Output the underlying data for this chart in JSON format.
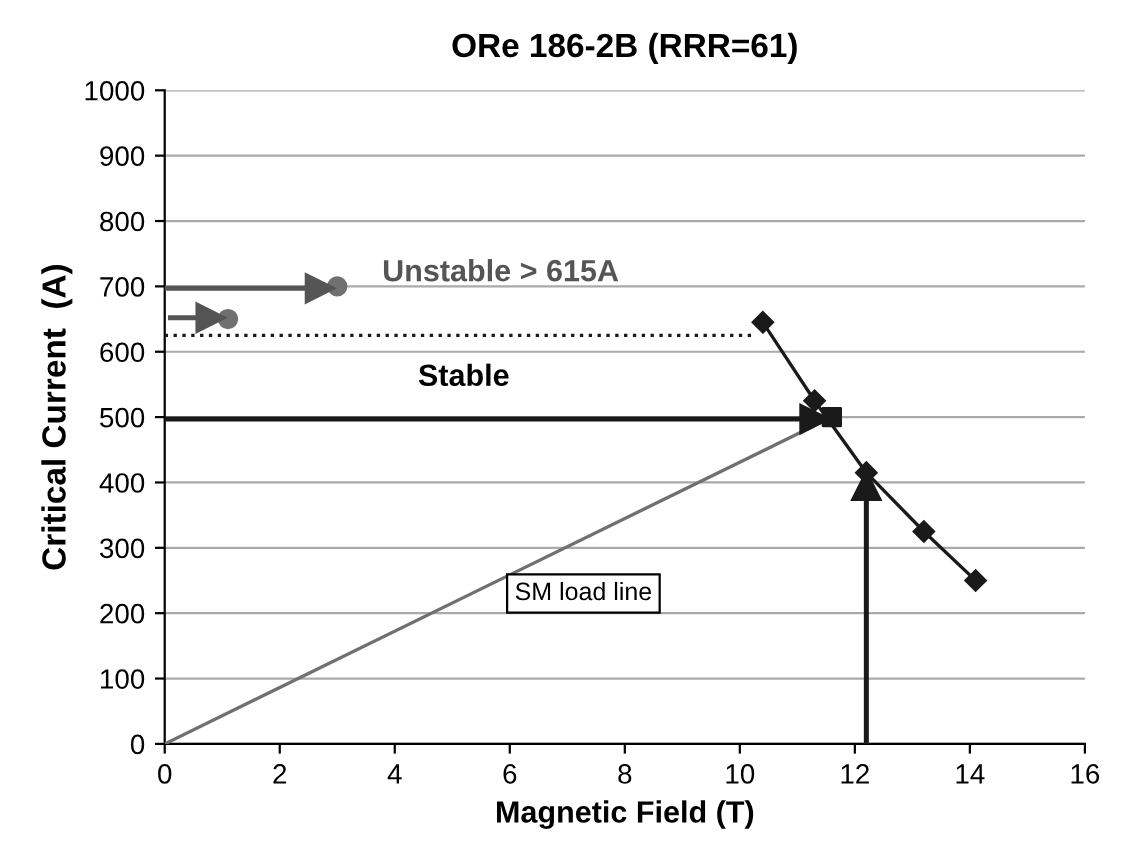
{
  "chart_data": {
    "type": "line",
    "title": "ORe 186-2B (RRR=61)",
    "xlabel": "Magnetic Field (T)",
    "ylabel": "Critical Current  (A)",
    "xlim": [
      0,
      16
    ],
    "xticks": [
      0,
      2,
      4,
      6,
      8,
      10,
      12,
      14,
      16
    ],
    "ylim": [
      0,
      1000
    ],
    "yticks": [
      0,
      100,
      200,
      300,
      400,
      500,
      600,
      700,
      800,
      900,
      1000
    ],
    "grid": "y",
    "legend": false,
    "series": [
      {
        "color": "#1a1a1a",
        "marker": "diamond",
        "x": [
          10.4,
          11.3,
          12.2,
          13.2,
          14.1
        ],
        "values": [
          645,
          525,
          415,
          325,
          250
        ]
      },
      {
        "color": "#707070",
        "marker": "none",
        "x": [
          0,
          11.6
        ],
        "values": [
          0,
          500
        ]
      },
      {
        "type": "scatter",
        "color": "#1a1a1a",
        "marker": "square",
        "x": [
          11.6
        ],
        "values": [
          500
        ]
      },
      {
        "type": "scatter",
        "color": "#707070",
        "marker": "circle",
        "x": [
          3,
          1.1
        ],
        "values": [
          700,
          650
        ]
      },
      {
        "color": "#1a1a1a",
        "marker": "none",
        "line_style": "dotted",
        "x": [
          0,
          10.2
        ],
        "values": [
          625,
          625
        ]
      },
      {
        "marker": "triangle",
        "color": "#555555",
        "x": [
          0,
          2.7
        ],
        "values": [
          697,
          697
        ]
      },
      {
        "marker": "triangle",
        "color": "#555555",
        "x": [
          0.1,
          0.8
        ],
        "values": [
          652,
          652
        ]
      },
      {
        "marker": "triangle",
        "color": "#1a1a1a",
        "x": [
          0,
          11.3
        ],
        "values": [
          497,
          497
        ]
      },
      {
        "marker": "triangle",
        "color": "#1a1a1a",
        "x": [
          12.2,
          12.2
        ],
        "values": [
          0,
          395
        ]
      }
    ],
    "annotations": [
      "Unstable > 615A",
      "Stable",
      "SM load line"
    ]
  }
}
